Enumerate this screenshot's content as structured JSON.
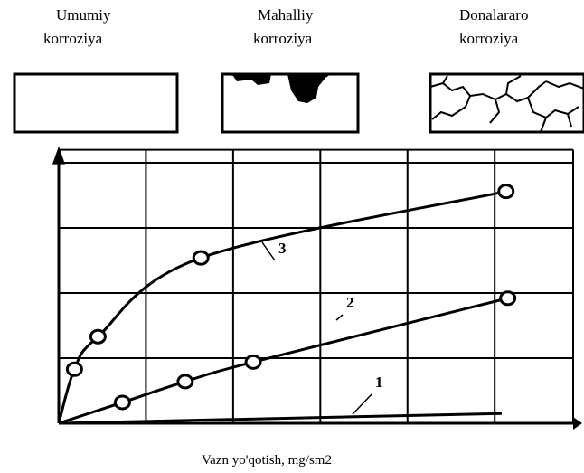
{
  "panels": [
    {
      "label": [
        "Umumiy",
        "korroziya"
      ]
    },
    {
      "label": [
        "Mahalliy",
        "korroziya"
      ]
    },
    {
      "label": [
        "Donalararo",
        "korroziya"
      ]
    }
  ],
  "chart_data": {
    "type": "line",
    "x_label": "Vazn yo'qotish, mg/sm2",
    "xlim": [
      0,
      5.9
    ],
    "ylim": [
      0,
      4.2
    ],
    "xticks": [
      1,
      2,
      3,
      4,
      5
    ],
    "yticks": [
      1,
      2,
      3,
      4
    ],
    "grid": true,
    "series": [
      {
        "name": "1",
        "color": "#000000",
        "marker": false,
        "x": [
          0,
          5.08
        ],
        "values": [
          0,
          0.15
        ]
      },
      {
        "name": "2",
        "color": "#000000",
        "marker": true,
        "x": [
          0,
          0.73,
          1.45,
          2.23,
          5.15
        ],
        "values": [
          0,
          0.32,
          0.64,
          0.94,
          1.92
        ]
      },
      {
        "name": "3",
        "color": "#000000",
        "marker": true,
        "x": [
          0,
          0.18,
          0.45,
          1.63,
          5.13
        ],
        "values": [
          0,
          0.83,
          1.33,
          2.54,
          3.56
        ]
      }
    ]
  }
}
